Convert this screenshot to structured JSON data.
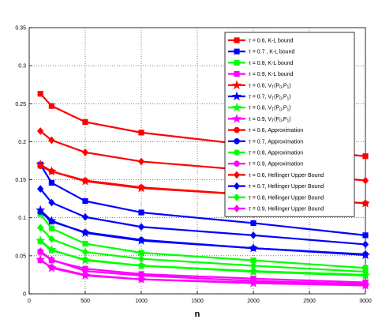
{
  "chart_data": {
    "type": "line",
    "title": "",
    "xlabel": "n",
    "ylabel": "",
    "xlim": [
      0,
      3000
    ],
    "ylim": [
      0,
      0.35
    ],
    "x_ticks": [
      "0",
      "500",
      "1000",
      "1500",
      "2000",
      "2500",
      "3000"
    ],
    "y_ticks": [
      "0",
      "0.05",
      "0.1",
      "0.15",
      "0.2",
      "0.25",
      "0.3",
      "0.35"
    ],
    "grid": true,
    "legend_position": "top-right",
    "x": [
      100,
      200,
      500,
      1000,
      2000,
      3000
    ],
    "series": [
      {
        "name": "τ = 0.6, K-L bound",
        "color": "#ff0000",
        "marker": "square",
        "values": [
          0.263,
          0.247,
          0.226,
          0.212,
          0.195,
          0.181
        ]
      },
      {
        "name": "τ = 0.7 , K-L bound",
        "color": "#0000ff",
        "marker": "square",
        "values": [
          0.17,
          0.146,
          0.122,
          0.107,
          0.093,
          0.077
        ]
      },
      {
        "name": "τ = 0.8, K-L bound",
        "color": "#00ff00",
        "marker": "square",
        "values": [
          0.105,
          0.086,
          0.066,
          0.054,
          0.044,
          0.034
        ]
      },
      {
        "name": "τ = 0.9,  K-L bound",
        "color": "#ff00ff",
        "marker": "square",
        "values": [
          0.055,
          0.044,
          0.033,
          0.026,
          0.02,
          0.015
        ]
      },
      {
        "name": "τ = 0.6, V_T(P_0,P_1)",
        "color": "#ff0000",
        "marker": "star",
        "values": [
          0.17,
          0.161,
          0.148,
          0.139,
          0.13,
          0.119
        ]
      },
      {
        "name": "τ = 0.7, V_T(P_0,P_1)",
        "color": "#0000ff",
        "marker": "star",
        "values": [
          0.11,
          0.096,
          0.08,
          0.07,
          0.06,
          0.051
        ]
      },
      {
        "name": "τ = 0.8, V_T(P_0,P_1)",
        "color": "#00ff00",
        "marker": "star",
        "values": [
          0.07,
          0.058,
          0.044,
          0.037,
          0.029,
          0.024
        ]
      },
      {
        "name": "τ = 0.9, V_T(P_0,P_1)",
        "color": "#ff00ff",
        "marker": "star",
        "values": [
          0.045,
          0.034,
          0.024,
          0.019,
          0.014,
          0.011
        ]
      },
      {
        "name": "τ = 0.6, Approximation",
        "color": "#ff0000",
        "marker": "circle",
        "values": [
          0.168,
          0.161,
          0.149,
          0.14,
          0.13,
          0.119
        ]
      },
      {
        "name": "τ = 0.7, Approximation",
        "color": "#0000ff",
        "marker": "circle",
        "values": [
          0.108,
          0.095,
          0.081,
          0.071,
          0.06,
          0.052
        ]
      },
      {
        "name": "τ = 0.8, Approximation",
        "color": "#00ff00",
        "marker": "circle",
        "values": [
          0.069,
          0.057,
          0.045,
          0.037,
          0.03,
          0.025
        ]
      },
      {
        "name": "τ = 0.9, Approximation",
        "color": "#ff00ff",
        "marker": "circle",
        "values": [
          0.044,
          0.035,
          0.025,
          0.019,
          0.015,
          0.011
        ]
      },
      {
        "name": "τ = 0.6, Hellinger Upper Bound",
        "color": "#ff0000",
        "marker": "diamond",
        "values": [
          0.214,
          0.202,
          0.186,
          0.174,
          0.162,
          0.149
        ]
      },
      {
        "name": "τ = 0.7, Hellinger Upper Bound",
        "color": "#0000ff",
        "marker": "diamond",
        "values": [
          0.138,
          0.12,
          0.101,
          0.088,
          0.077,
          0.065
        ]
      },
      {
        "name": "τ = 0.8, Hellinger Upper Bound",
        "color": "#00ff00",
        "marker": "diamond",
        "values": [
          0.087,
          0.072,
          0.055,
          0.046,
          0.037,
          0.029
        ]
      },
      {
        "name": "τ = 0.9,  Hellinger Upper Bound",
        "color": "#ff00ff",
        "marker": "diamond",
        "values": [
          0.056,
          0.045,
          0.03,
          0.024,
          0.017,
          0.013
        ]
      }
    ]
  }
}
